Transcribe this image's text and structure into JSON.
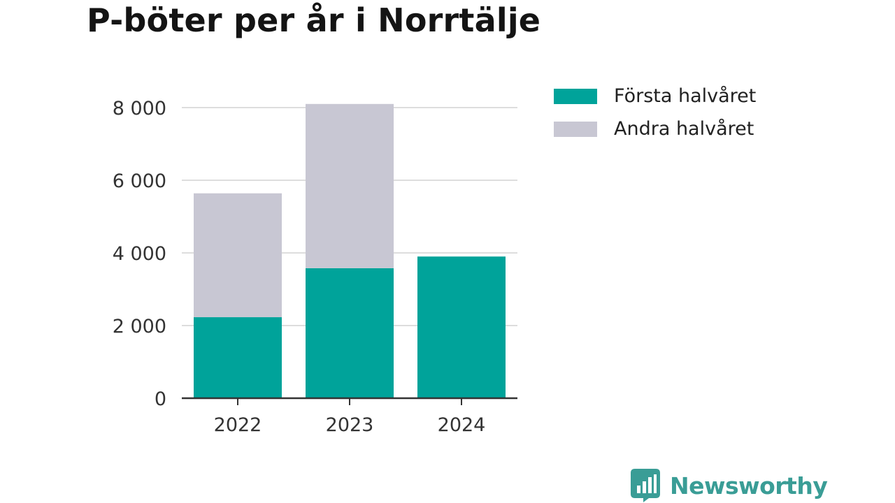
{
  "title": "P-böter per år i Norrtälje",
  "colors": {
    "first_half": "#00a39a",
    "second_half": "#c8c7d3",
    "grid": "#dddddd",
    "axis": "#333333",
    "brand": "#3a9d96"
  },
  "legend": {
    "items": [
      {
        "label": "Första halvåret",
        "color": "#00a39a"
      },
      {
        "label": "Andra halvåret",
        "color": "#c8c7d3"
      }
    ]
  },
  "brand": {
    "name": "Newsworthy",
    "icon": "newsworthy-logo-icon"
  },
  "chart_data": {
    "type": "bar",
    "stacked": true,
    "title": "P-böter per år i Norrtälje",
    "categories": [
      "2022",
      "2023",
      "2024"
    ],
    "series": [
      {
        "name": "Första halvåret",
        "values": [
          2230,
          3580,
          3900
        ]
      },
      {
        "name": "Andra halvåret",
        "values": [
          3410,
          4520,
          0
        ]
      }
    ],
    "ylim": [
      0,
      8000
    ],
    "yticks": [
      0,
      2000,
      4000,
      6000,
      8000
    ],
    "ytick_labels": [
      "0",
      "2 000",
      "4 000",
      "6 000",
      "8 000"
    ],
    "xlabel": "",
    "ylabel": "",
    "grid": true,
    "legend_position": "top-right"
  }
}
